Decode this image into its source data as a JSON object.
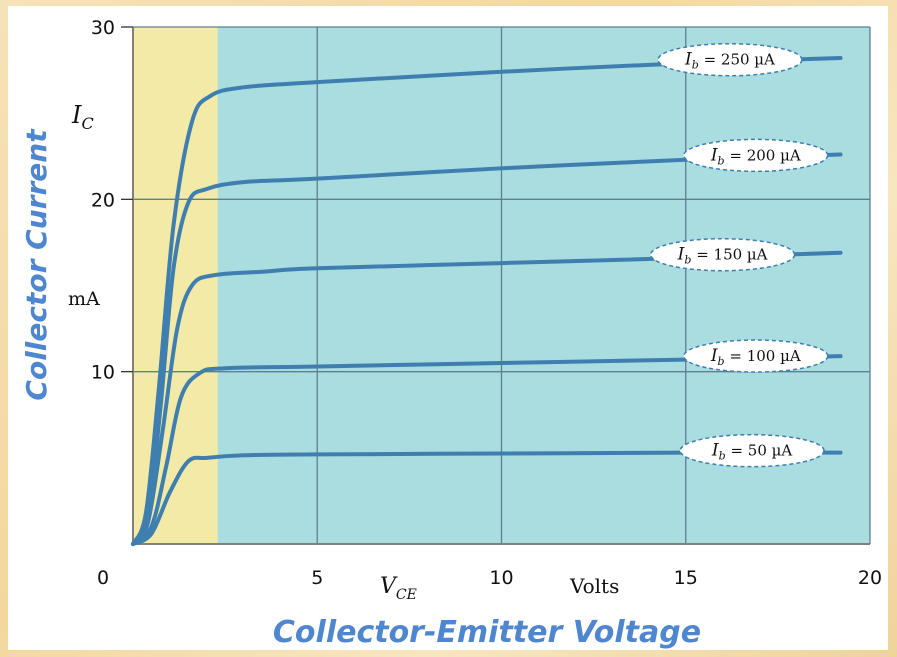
{
  "chart_data": {
    "type": "line",
    "title": "",
    "xlabel": "Collector-Emitter Voltage",
    "ylabel": "Collector Current",
    "x_axis_symbol": "V",
    "x_axis_symbol_sub": "CE",
    "x_unit": "Volts",
    "y_axis_symbol": "I",
    "y_axis_symbol_sub": "C",
    "y_unit": "mA",
    "xlim": [
      0,
      20
    ],
    "ylim": [
      0,
      30
    ],
    "x_ticks": [
      "0",
      "5",
      "10",
      "15",
      "20"
    ],
    "y_ticks": [
      "10",
      "20",
      "30"
    ],
    "grid": true,
    "saturation_region_x": [
      0,
      2.3
    ],
    "colors": {
      "curve": "#3f7fb0",
      "saturation_region": "#f2eaa6",
      "active_region": "#a9dde0",
      "grid": "#5f7f90",
      "axis_title": "#4f86d0"
    },
    "series": [
      {
        "name": "I_b = 50 µA",
        "label_sym": "I",
        "label_sub": "b",
        "label_value": "= 50 µA",
        "label_x": 16.8,
        "points": [
          [
            0,
            0
          ],
          [
            0.5,
            0.6
          ],
          [
            1.0,
            3.0
          ],
          [
            1.5,
            4.8
          ],
          [
            2.0,
            5.0
          ],
          [
            3,
            5.15
          ],
          [
            5,
            5.2
          ],
          [
            10,
            5.25
          ],
          [
            15,
            5.3
          ],
          [
            19.2,
            5.3
          ]
        ]
      },
      {
        "name": "I_b = 100 µA",
        "label_sym": "I",
        "label_sub": "b",
        "label_value": "= 100 µA",
        "label_x": 16.9,
        "points": [
          [
            0,
            0
          ],
          [
            0.5,
            1.0
          ],
          [
            0.9,
            4.5
          ],
          [
            1.3,
            8.5
          ],
          [
            1.8,
            9.9
          ],
          [
            2.5,
            10.2
          ],
          [
            5,
            10.3
          ],
          [
            10,
            10.5
          ],
          [
            15,
            10.7
          ],
          [
            19.2,
            10.9
          ]
        ]
      },
      {
        "name": "I_b = 150 µA",
        "label_sym": "I",
        "label_sub": "b",
        "label_value": "= 150 µA",
        "label_x": 16.0,
        "points": [
          [
            0,
            0
          ],
          [
            0.4,
            1.2
          ],
          [
            0.8,
            6.5
          ],
          [
            1.2,
            12.5
          ],
          [
            1.6,
            15.0
          ],
          [
            2.2,
            15.6
          ],
          [
            3.5,
            15.8
          ],
          [
            5,
            16.0
          ],
          [
            10,
            16.3
          ],
          [
            15,
            16.6
          ],
          [
            19.2,
            16.9
          ]
        ]
      },
      {
        "name": "I_b = 200 µA",
        "label_sym": "I",
        "label_sub": "b",
        "label_value": "= 200 µA",
        "label_x": 16.9,
        "points": [
          [
            0,
            0
          ],
          [
            0.4,
            1.5
          ],
          [
            0.75,
            8.0
          ],
          [
            1.1,
            16.0
          ],
          [
            1.5,
            19.8
          ],
          [
            2.0,
            20.6
          ],
          [
            3,
            21.0
          ],
          [
            5,
            21.2
          ],
          [
            10,
            21.8
          ],
          [
            15,
            22.3
          ],
          [
            19.2,
            22.6
          ]
        ]
      },
      {
        "name": "I_b = 250 µA",
        "label_sym": "I",
        "label_sub": "b",
        "label_value": "= 250 µA",
        "label_x": 16.2,
        "points": [
          [
            0,
            0
          ],
          [
            0.35,
            1.8
          ],
          [
            0.7,
            9.0
          ],
          [
            1.1,
            18.5
          ],
          [
            1.6,
            24.5
          ],
          [
            2.1,
            26.0
          ],
          [
            3,
            26.5
          ],
          [
            5,
            26.8
          ],
          [
            10,
            27.4
          ],
          [
            15,
            27.9
          ],
          [
            19.2,
            28.2
          ]
        ]
      }
    ]
  }
}
